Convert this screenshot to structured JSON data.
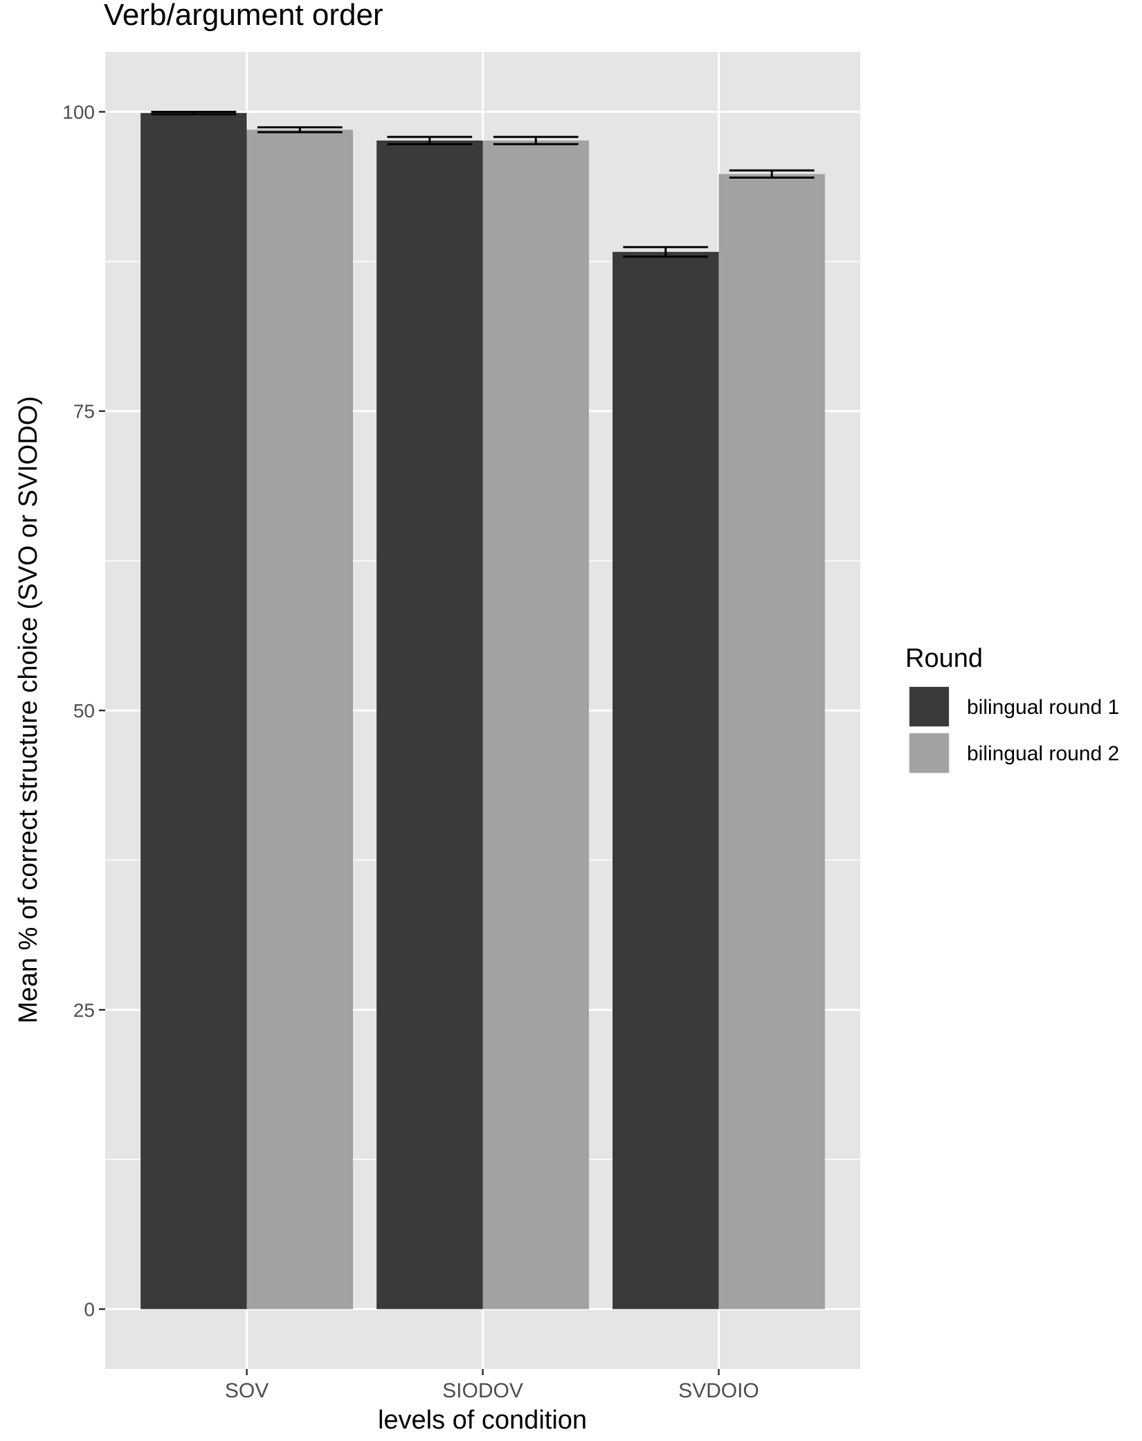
{
  "chart_data": {
    "type": "bar",
    "title": "Verb/argument order",
    "xlabel": "levels of condition",
    "ylabel": "Mean % of correct structure choice (SVO or SVIODO)",
    "categories": [
      "SOV",
      "SIODOV",
      "SVDOIO"
    ],
    "series": [
      {
        "name": "bilingual round 1",
        "color": "#3a3a3a",
        "values": [
          99.9,
          97.6,
          88.3
        ],
        "error": [
          0.1,
          0.3,
          0.4
        ]
      },
      {
        "name": "bilingual round 2",
        "color": "#a2a2a2",
        "values": [
          98.5,
          97.6,
          94.8
        ],
        "error": [
          0.2,
          0.3,
          0.3
        ]
      }
    ],
    "ylim": [
      -5,
      105
    ],
    "yticks": [
      0,
      25,
      50,
      75,
      100
    ],
    "ytick_labels": [
      "0",
      "25",
      "50",
      "75",
      "100"
    ],
    "grid": true,
    "legend": {
      "title": "Round",
      "position": "right"
    },
    "colors": {
      "panel": "#e5e5e5",
      "grid": "#ffffff",
      "text": "#000000",
      "axis_text": "#4d4d4d"
    }
  }
}
